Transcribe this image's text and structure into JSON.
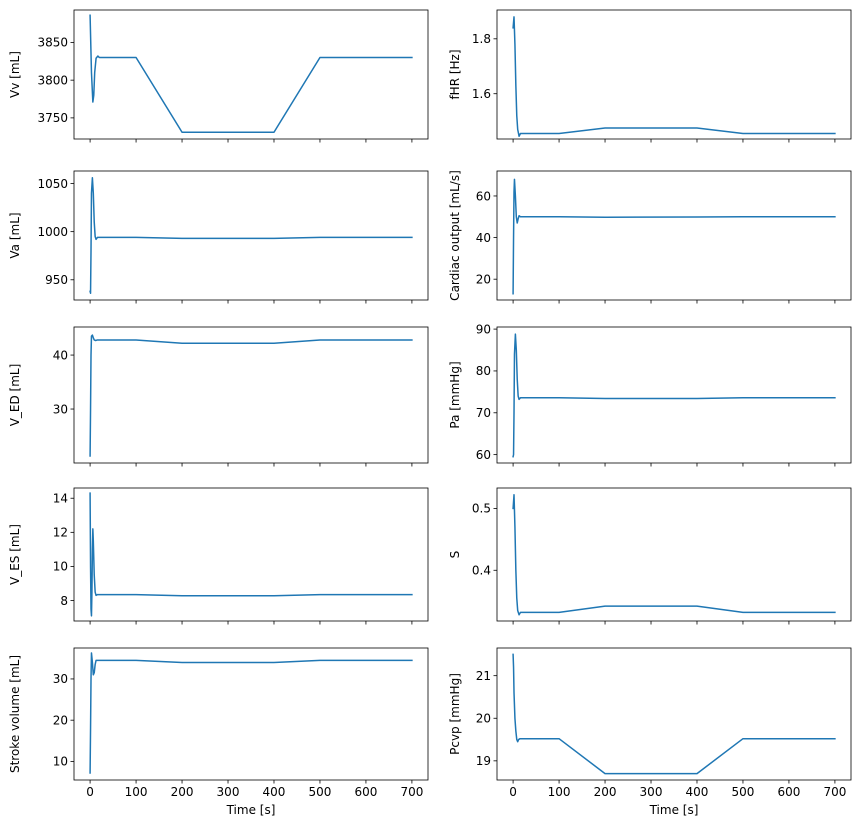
{
  "line_color": "#1f77b4",
  "chart_data": [
    {
      "type": "line",
      "ylabel": "Vv [mL]",
      "xlabel": "",
      "xlim": [
        -35,
        735
      ],
      "ylim": [
        3722,
        3893
      ],
      "xticks": [
        0,
        100,
        200,
        300,
        400,
        500,
        600,
        700
      ],
      "show_xticklabels": false,
      "yticks": [
        3750,
        3800,
        3850
      ],
      "ytick_labels": [
        "3750",
        "3800",
        "3850"
      ],
      "series": [
        {
          "x": [
            0,
            3,
            6,
            8,
            10,
            13,
            17,
            20,
            100,
            200,
            400,
            500,
            700
          ],
          "y": [
            3886,
            3810,
            3771,
            3780,
            3810,
            3829,
            3832,
            3830,
            3830,
            3731,
            3731,
            3830,
            3830
          ]
        }
      ]
    },
    {
      "type": "line",
      "ylabel": "fHR [Hz]",
      "xlabel": "",
      "xlim": [
        -35,
        735
      ],
      "ylim": [
        1.435,
        1.905
      ],
      "xticks": [
        0,
        100,
        200,
        300,
        400,
        500,
        600,
        700
      ],
      "show_xticklabels": false,
      "yticks": [
        1.6,
        1.8
      ],
      "ytick_labels": [
        "1.6",
        "1.8"
      ],
      "series": [
        {
          "x": [
            0,
            2,
            4,
            6,
            8,
            10,
            13,
            16,
            20,
            100,
            200,
            400,
            500,
            700
          ],
          "y": [
            1.84,
            1.88,
            1.78,
            1.63,
            1.52,
            1.47,
            1.445,
            1.455,
            1.455,
            1.455,
            1.475,
            1.475,
            1.455,
            1.455
          ]
        }
      ]
    },
    {
      "type": "line",
      "ylabel": "Va [mL]",
      "xlabel": "",
      "xlim": [
        -35,
        735
      ],
      "ylim": [
        929,
        1063
      ],
      "xticks": [
        0,
        100,
        200,
        300,
        400,
        500,
        600,
        700
      ],
      "show_xticklabels": false,
      "yticks": [
        950,
        1000,
        1050
      ],
      "ytick_labels": [
        "950",
        "1000",
        "1050"
      ],
      "series": [
        {
          "x": [
            0,
            1,
            2,
            3,
            5,
            7,
            9,
            11,
            13,
            16,
            20,
            100,
            200,
            400,
            500,
            700
          ],
          "y": [
            938,
            936,
            980,
            1040,
            1056,
            1040,
            1010,
            995,
            992,
            994,
            994,
            994,
            993,
            993,
            994,
            994
          ]
        }
      ]
    },
    {
      "type": "line",
      "ylabel": "Cardiac output [mL/s]",
      "xlabel": "",
      "xlim": [
        -35,
        735
      ],
      "ylim": [
        10,
        72
      ],
      "xticks": [
        0,
        100,
        200,
        300,
        400,
        500,
        600,
        700
      ],
      "show_xticklabels": false,
      "yticks": [
        20,
        40,
        60
      ],
      "ytick_labels": [
        "20",
        "40",
        "60"
      ],
      "series": [
        {
          "x": [
            0,
            1,
            2,
            3,
            5,
            7,
            9,
            11,
            13,
            16,
            20,
            100,
            200,
            400,
            500,
            700
          ],
          "y": [
            13,
            40,
            62,
            68,
            60,
            50,
            47,
            49,
            50.5,
            50,
            50,
            50,
            49.8,
            49.9,
            50,
            50
          ]
        }
      ]
    },
    {
      "type": "line",
      "ylabel": "V_ED [mL]",
      "xlabel": "",
      "xlim": [
        -35,
        735
      ],
      "ylim": [
        20,
        45.2
      ],
      "xticks": [
        0,
        100,
        200,
        300,
        400,
        500,
        600,
        700
      ],
      "show_xticklabels": false,
      "yticks": [
        30,
        40
      ],
      "ytick_labels": [
        "30",
        "40"
      ],
      "series": [
        {
          "x": [
            0,
            1,
            2,
            3,
            5,
            7,
            9,
            12,
            16,
            20,
            100,
            200,
            400,
            500,
            700
          ],
          "y": [
            21.3,
            30,
            40,
            43.5,
            43.7,
            43.2,
            42.8,
            42.7,
            42.8,
            42.8,
            42.8,
            42.2,
            42.2,
            42.8,
            42.8
          ]
        }
      ]
    },
    {
      "type": "line",
      "ylabel": "Pa [mmHg]",
      "xlabel": "",
      "xlim": [
        -35,
        735
      ],
      "ylim": [
        58,
        90.5
      ],
      "xticks": [
        0,
        100,
        200,
        300,
        400,
        500,
        600,
        700
      ],
      "show_xticklabels": false,
      "yticks": [
        60,
        70,
        80,
        90
      ],
      "ytick_labels": [
        "60",
        "70",
        "80",
        "90"
      ],
      "series": [
        {
          "x": [
            0,
            1,
            2,
            3,
            5,
            7,
            9,
            11,
            13,
            16,
            20,
            100,
            200,
            400,
            500,
            700
          ],
          "y": [
            59.5,
            60,
            70,
            84,
            88.8,
            85,
            78,
            74,
            73.2,
            73.6,
            73.6,
            73.6,
            73.4,
            73.4,
            73.6,
            73.6
          ]
        }
      ]
    },
    {
      "type": "line",
      "ylabel": "V_ES [mL]",
      "xlabel": "",
      "xlim": [
        -35,
        735
      ],
      "ylim": [
        6.8,
        14.6
      ],
      "xticks": [
        0,
        100,
        200,
        300,
        400,
        500,
        600,
        700
      ],
      "show_xticklabels": false,
      "yticks": [
        8,
        10,
        12,
        14
      ],
      "ytick_labels": [
        "8",
        "10",
        "12",
        "14"
      ],
      "series": [
        {
          "x": [
            0,
            1,
            2,
            3,
            4,
            5,
            6,
            7,
            9,
            11,
            13,
            16,
            20,
            100,
            200,
            400,
            500,
            700
          ],
          "y": [
            14.3,
            10,
            7.5,
            7.1,
            8.5,
            11,
            12.2,
            11.5,
            9.5,
            8.5,
            8.3,
            8.35,
            8.35,
            8.35,
            8.28,
            8.28,
            8.35,
            8.35
          ]
        }
      ]
    },
    {
      "type": "line",
      "ylabel": "S",
      "xlabel": "",
      "xlim": [
        -35,
        735
      ],
      "ylim": [
        0.318,
        0.533
      ],
      "xticks": [
        0,
        100,
        200,
        300,
        400,
        500,
        600,
        700
      ],
      "show_xticklabels": false,
      "yticks": [
        0.4,
        0.5
      ],
      "ytick_labels": [
        "0.4",
        "0.5"
      ],
      "series": [
        {
          "x": [
            0,
            2,
            4,
            6,
            8,
            10,
            13,
            16,
            20,
            100,
            200,
            400,
            500,
            700
          ],
          "y": [
            0.5,
            0.522,
            0.47,
            0.4,
            0.355,
            0.335,
            0.328,
            0.332,
            0.332,
            0.332,
            0.342,
            0.342,
            0.332,
            0.332
          ]
        }
      ]
    },
    {
      "type": "line",
      "ylabel": "Stroke volume [mL]",
      "xlabel": "Time [s]",
      "xlim": [
        -35,
        735
      ],
      "ylim": [
        5.5,
        37.5
      ],
      "xticks": [
        0,
        100,
        200,
        300,
        400,
        500,
        600,
        700
      ],
      "xtick_labels": [
        "0",
        "100",
        "200",
        "300",
        "400",
        "500",
        "600",
        "700"
      ],
      "show_xticklabels": true,
      "yticks": [
        10,
        20,
        30
      ],
      "ytick_labels": [
        "10",
        "20",
        "30"
      ],
      "series": [
        {
          "x": [
            0,
            1,
            2,
            3,
            5,
            7,
            9,
            11,
            13,
            16,
            20,
            100,
            200,
            400,
            500,
            700
          ],
          "y": [
            7.2,
            18,
            30,
            36.3,
            34,
            31,
            31.5,
            33.5,
            34.5,
            34.5,
            34.5,
            34.5,
            34,
            34,
            34.5,
            34.5
          ]
        }
      ]
    },
    {
      "type": "line",
      "ylabel": "Pcvp [mmHg]",
      "xlabel": "Time [s]",
      "xlim": [
        -35,
        735
      ],
      "ylim": [
        18.55,
        21.65
      ],
      "xticks": [
        0,
        100,
        200,
        300,
        400,
        500,
        600,
        700
      ],
      "xtick_labels": [
        "0",
        "100",
        "200",
        "300",
        "400",
        "500",
        "600",
        "700"
      ],
      "show_xticklabels": true,
      "yticks": [
        19,
        20,
        21
      ],
      "ytick_labels": [
        "19",
        "20",
        "21"
      ],
      "series": [
        {
          "x": [
            0,
            1,
            2,
            4,
            6,
            8,
            10,
            12,
            15,
            20,
            100,
            200,
            400,
            500,
            700
          ],
          "y": [
            21.5,
            21.2,
            20.6,
            20.0,
            19.7,
            19.5,
            19.45,
            19.5,
            19.52,
            19.52,
            19.52,
            18.7,
            18.7,
            19.52,
            19.52
          ]
        }
      ]
    }
  ]
}
